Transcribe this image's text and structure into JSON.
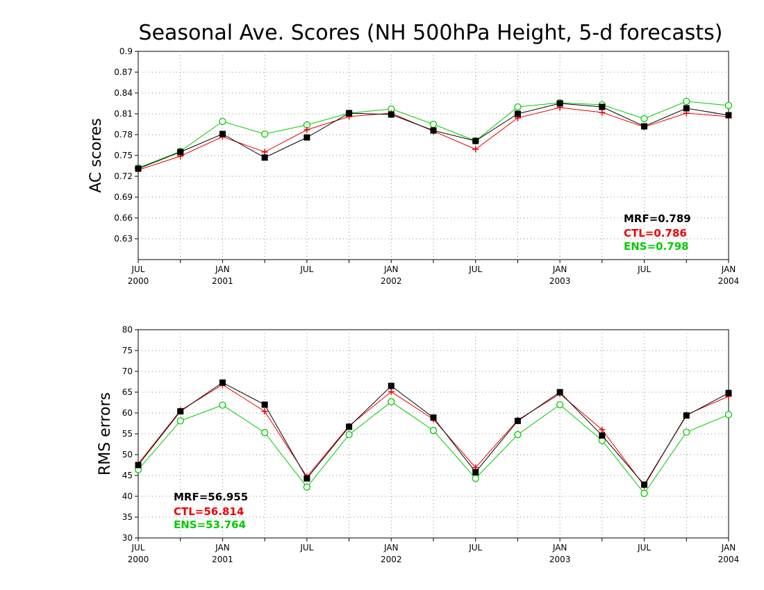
{
  "title": "Seasonal Ave. Scores (NH 500hPa Height, 5-d forecasts)",
  "colors": {
    "MRF": "#000000",
    "CTL": "#ee0000",
    "ENS": "#00cc00"
  },
  "chart_data": [
    {
      "type": "line",
      "ylabel": "AC scores",
      "ylim": [
        0.6,
        0.9
      ],
      "yticks": [
        "0.63",
        "0.66",
        "0.69",
        "0.72",
        "0.75",
        "0.78",
        "0.81",
        "0.84",
        "0.87",
        "0.9"
      ],
      "xlim": [
        0,
        14
      ],
      "xticks": [
        {
          "pos": 0,
          "line1": "JUL",
          "line2": "2000"
        },
        {
          "pos": 2,
          "line1": "JAN",
          "line2": "2001"
        },
        {
          "pos": 4,
          "line1": "JUL",
          "line2": ""
        },
        {
          "pos": 6,
          "line1": "JAN",
          "line2": "2002"
        },
        {
          "pos": 8,
          "line1": "JUL",
          "line2": ""
        },
        {
          "pos": 10,
          "line1": "JAN",
          "line2": "2003"
        },
        {
          "pos": 12,
          "line1": "JUL",
          "line2": ""
        },
        {
          "pos": 14,
          "line1": "JAN",
          "line2": "2004"
        }
      ],
      "grid": true,
      "x": [
        0,
        1,
        2,
        3,
        4,
        5,
        6,
        7,
        8,
        9,
        10,
        11,
        12,
        13,
        14
      ],
      "series": [
        {
          "name": "MRF",
          "marker": "square",
          "values": [
            0.731,
            0.755,
            0.781,
            0.747,
            0.776,
            0.811,
            0.809,
            0.786,
            0.771,
            0.81,
            0.825,
            0.82,
            0.792,
            0.818,
            0.808
          ]
        },
        {
          "name": "CTL",
          "marker": "plus",
          "values": [
            0.729,
            0.749,
            0.777,
            0.755,
            0.787,
            0.806,
            0.811,
            0.785,
            0.759,
            0.804,
            0.819,
            0.812,
            0.791,
            0.811,
            0.806
          ]
        },
        {
          "name": "ENS",
          "marker": "circle",
          "values": [
            0.732,
            0.756,
            0.799,
            0.781,
            0.794,
            0.811,
            0.817,
            0.795,
            0.771,
            0.82,
            0.826,
            0.823,
            0.803,
            0.828,
            0.822
          ]
        }
      ],
      "stats": [
        "MRF=0.789",
        "CTL=0.786",
        "ENS=0.798"
      ],
      "stats_placement": "bottom-right"
    },
    {
      "type": "line",
      "ylabel": "RMS errors",
      "ylim": [
        30,
        80
      ],
      "yticks": [
        "30",
        "35",
        "40",
        "45",
        "50",
        "55",
        "60",
        "65",
        "70",
        "75",
        "80"
      ],
      "xlim": [
        0,
        14
      ],
      "xticks": [
        {
          "pos": 0,
          "line1": "JUL",
          "line2": "2000"
        },
        {
          "pos": 2,
          "line1": "JAN",
          "line2": "2001"
        },
        {
          "pos": 4,
          "line1": "JUL",
          "line2": ""
        },
        {
          "pos": 6,
          "line1": "JAN",
          "line2": "2002"
        },
        {
          "pos": 8,
          "line1": "JUL",
          "line2": ""
        },
        {
          "pos": 10,
          "line1": "JAN",
          "line2": "2003"
        },
        {
          "pos": 12,
          "line1": "JUL",
          "line2": ""
        },
        {
          "pos": 14,
          "line1": "JAN",
          "line2": "2004"
        }
      ],
      "grid": true,
      "x": [
        0,
        1,
        2,
        3,
        4,
        5,
        6,
        7,
        8,
        9,
        10,
        11,
        12,
        13,
        14
      ],
      "series": [
        {
          "name": "MRF",
          "marker": "square",
          "values": [
            47.5,
            60.4,
            67.3,
            62.0,
            44.3,
            56.7,
            66.5,
            58.9,
            45.8,
            58.1,
            65.0,
            54.6,
            42.8,
            59.4,
            64.8
          ]
        },
        {
          "name": "CTL",
          "marker": "plus",
          "values": [
            47.8,
            60.6,
            66.8,
            60.4,
            44.7,
            56.9,
            65.1,
            58.5,
            46.9,
            58.3,
            64.6,
            56.0,
            42.5,
            59.6,
            64.0
          ]
        },
        {
          "name": "ENS",
          "marker": "circle",
          "values": [
            46.4,
            58.1,
            61.9,
            55.3,
            42.2,
            54.8,
            62.7,
            55.8,
            44.3,
            54.8,
            62.0,
            53.4,
            40.7,
            55.4,
            59.6
          ]
        }
      ],
      "stats": [
        "MRF=56.955",
        "CTL=56.814",
        "ENS=53.764"
      ],
      "stats_placement": "bottom-left"
    }
  ]
}
